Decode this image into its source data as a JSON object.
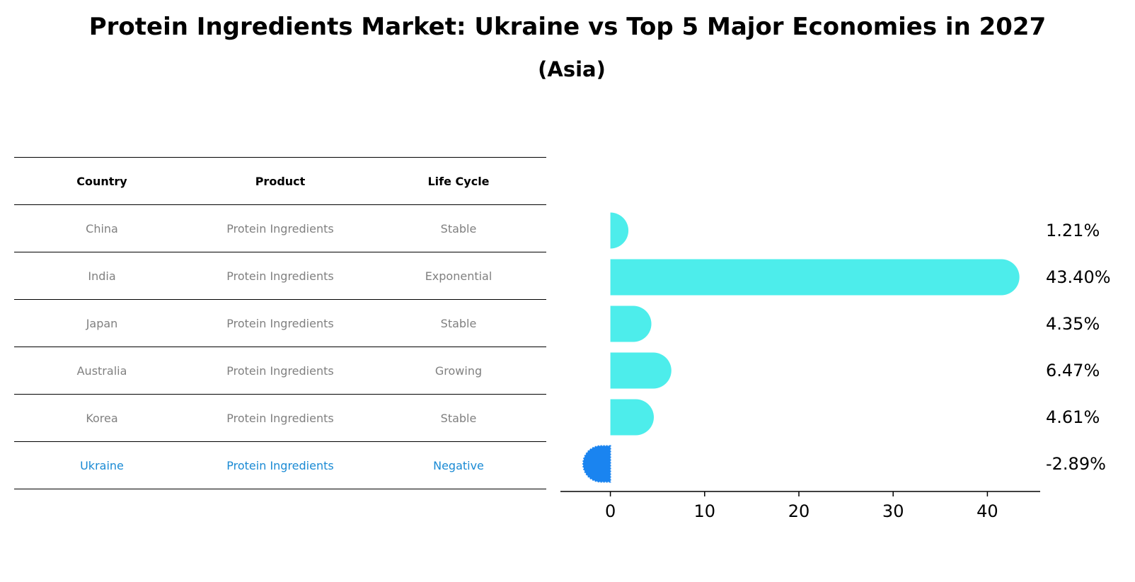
{
  "title": "Protein Ingredients Market: Ukraine vs Top 5 Major Economies in 2027",
  "subtitle": "(Asia)",
  "table": {
    "headers": [
      "Country",
      "Product",
      "Life Cycle"
    ],
    "rows": [
      [
        "China",
        "Protein Ingredients",
        "Stable"
      ],
      [
        "India",
        "Protein Ingredients",
        "Exponential"
      ],
      [
        "Japan",
        "Protein Ingredients",
        "Stable"
      ],
      [
        "Australia",
        "Protein Ingredients",
        "Growing"
      ],
      [
        "Korea",
        "Protein Ingredients",
        "Stable"
      ],
      [
        "Ukraine",
        "Protein Ingredients",
        "Negative"
      ]
    ],
    "highlight_row": 5
  },
  "colors": {
    "bar": "#4dedeb",
    "highlight_bar": "#1a84f0",
    "highlight_text": "#1a8ad4",
    "muted_text": "#808080"
  },
  "chart_data": {
    "type": "bar",
    "orientation": "horizontal",
    "categories": [
      "China",
      "India",
      "Japan",
      "Australia",
      "Korea",
      "Ukraine"
    ],
    "values": [
      1.21,
      43.4,
      4.35,
      6.47,
      4.61,
      -2.89
    ],
    "value_labels": [
      "1.21%",
      "43.40%",
      "4.35%",
      "6.47%",
      "4.61%",
      "-2.89%"
    ],
    "xlim": [
      -5.3,
      45.6
    ],
    "xticks": [
      0,
      10,
      20,
      30,
      40
    ],
    "xtick_labels": [
      "0",
      "10",
      "20",
      "30",
      "40"
    ],
    "highlight_index": 5,
    "title": "",
    "xlabel": "",
    "ylabel": ""
  }
}
